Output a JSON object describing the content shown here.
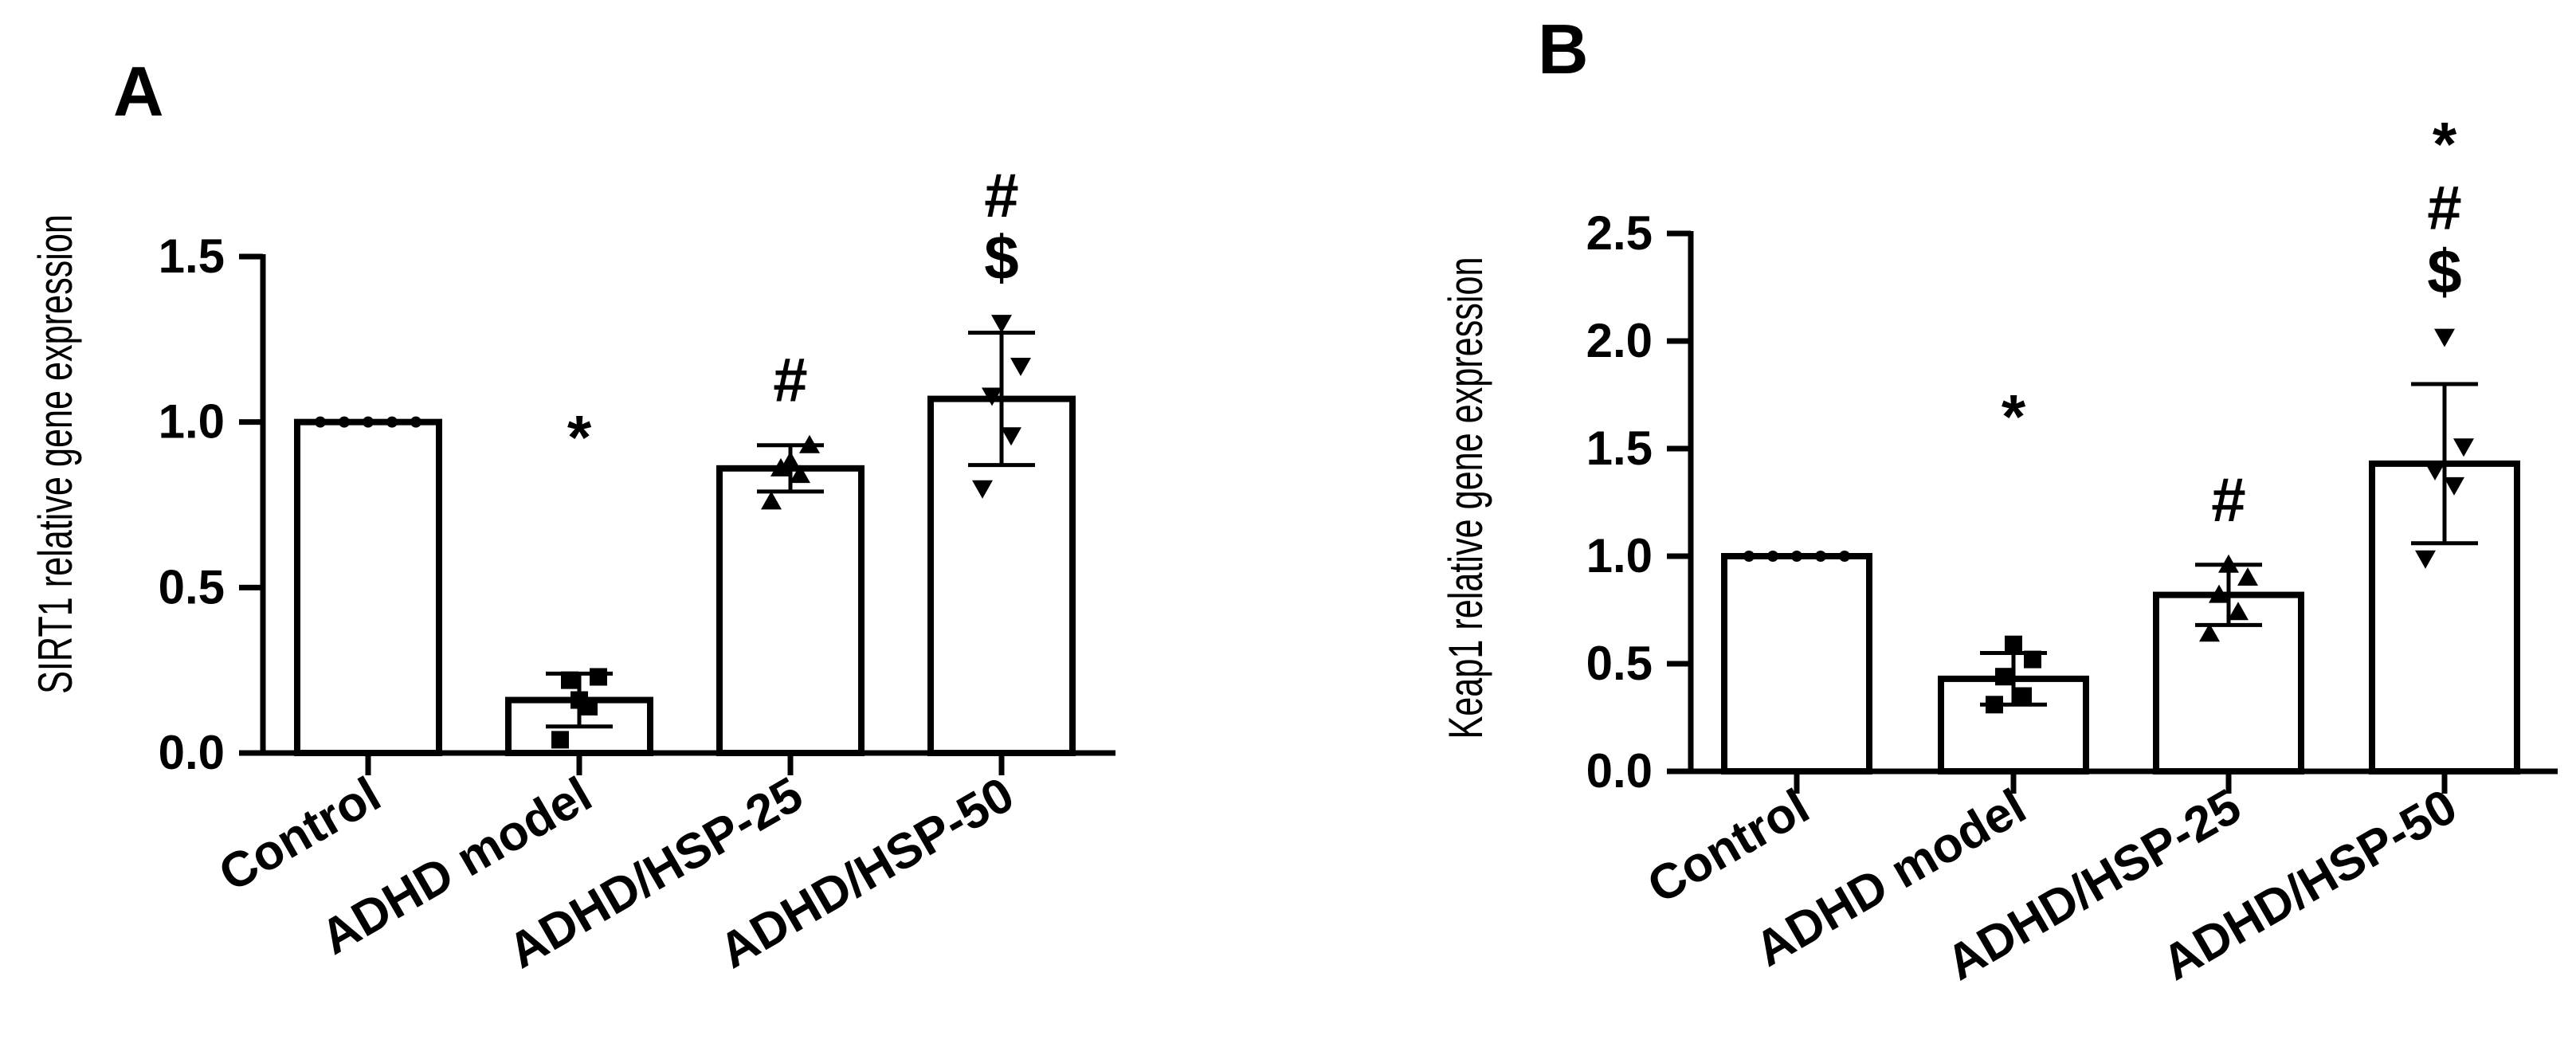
{
  "chart_data": [
    {
      "type": "bar",
      "panel": "A",
      "ylabel": "SIRT1 relative gene expression",
      "categories": [
        "Control",
        "ADHD model",
        "ADHD/HSP-25",
        "ADHD/HSP-50"
      ],
      "values": [
        1.0,
        0.16,
        0.86,
        1.07
      ],
      "errors": [
        0.0,
        0.08,
        0.07,
        0.2
      ],
      "points": [
        [
          1.0,
          1.0,
          1.0,
          1.0,
          1.0
        ],
        [
          0.04,
          0.14,
          0.22,
          0.23,
          0.16
        ],
        [
          0.76,
          0.84,
          0.86,
          0.93,
          0.88
        ],
        [
          0.8,
          0.96,
          1.08,
          1.17,
          1.3
        ]
      ],
      "point_markers": [
        "circle",
        "square",
        "triangle-up",
        "triangle-down"
      ],
      "significance": [
        [],
        [
          "*"
        ],
        [
          "#"
        ],
        [
          "#",
          "$"
        ]
      ],
      "yticks": [
        "0.0",
        "0.5",
        "1.0",
        "1.5"
      ],
      "ylim": [
        0,
        1.5
      ],
      "grid": false,
      "legend": "none"
    },
    {
      "type": "bar",
      "panel": "B",
      "ylabel": "Keap1 relative gene expression",
      "categories": [
        "Control",
        "ADHD model",
        "ADHD/HSP-25",
        "ADHD/HSP-50"
      ],
      "values": [
        1.0,
        0.43,
        0.82,
        1.43
      ],
      "errors": [
        0.0,
        0.12,
        0.14,
        0.37
      ],
      "points": [
        [
          1.0,
          1.0,
          1.0,
          1.0,
          1.0
        ],
        [
          0.31,
          0.35,
          0.44,
          0.52,
          0.59
        ],
        [
          0.64,
          0.74,
          0.82,
          0.9,
          0.96
        ],
        [
          0.99,
          1.33,
          1.4,
          1.51,
          2.02
        ]
      ],
      "point_markers": [
        "circle",
        "square",
        "triangle-up",
        "triangle-down"
      ],
      "significance": [
        [],
        [
          "*"
        ],
        [
          "#"
        ],
        [
          "*",
          "#",
          "$"
        ]
      ],
      "yticks": [
        "0.0",
        "0.5",
        "1.0",
        "1.5",
        "2.0",
        "2.5"
      ],
      "ylim": [
        0,
        2.5
      ],
      "grid": false,
      "legend": "none"
    }
  ]
}
